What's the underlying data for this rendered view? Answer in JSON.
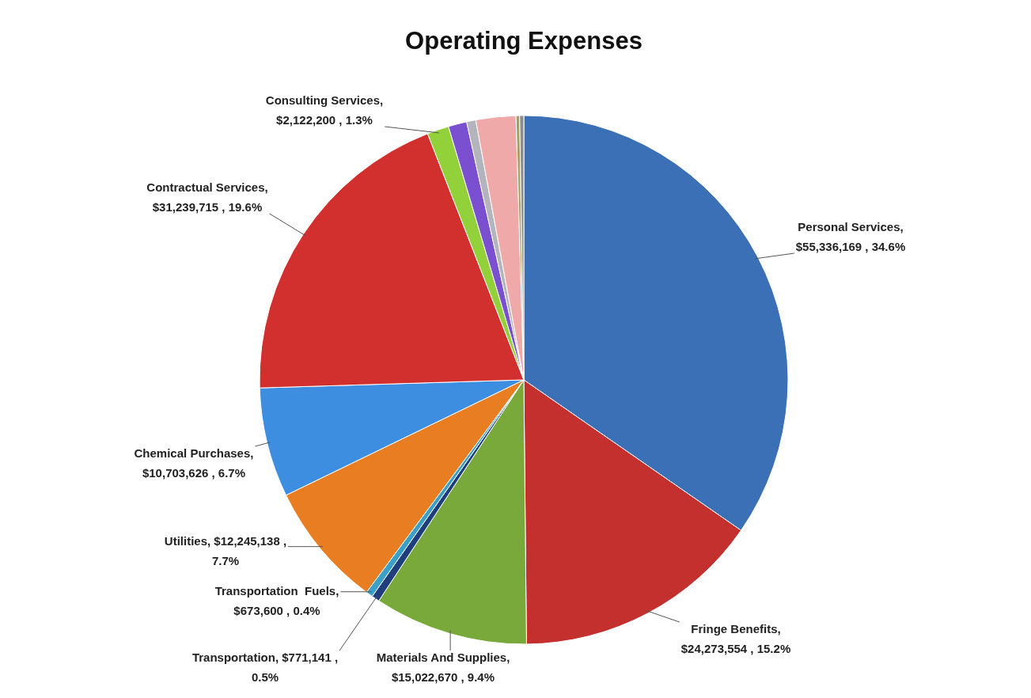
{
  "chart_data": {
    "type": "pie",
    "title": "Operating Expenses",
    "categories": [
      "Personal Services",
      "Fringe Benefits",
      "Materials And Supplies",
      "Transportation",
      "Transportation  Fuels",
      "Utilities",
      "Chemical Purchases",
      "Contractual Services",
      "Consulting Services",
      null,
      null,
      null,
      null,
      null
    ],
    "values": [
      55336169,
      24273554,
      15022670,
      771141,
      673600,
      12245138,
      10703626,
      31239715,
      2122200,
      1800000,
      900000,
      3900000,
      350000,
      400000
    ],
    "colors": [
      "#3b6fb6",
      "#c3302d",
      "#79a83b",
      "#1e3f7c",
      "#3aa0c8",
      "#e97d21",
      "#3d8ee0",
      "#d2302e",
      "#93d13a",
      "#7a4fd0",
      "#b4b4bc",
      "#f0a9a9",
      "#a3a062",
      "#8c8c8c"
    ],
    "value_labels": [
      ", $55,336,169 , 34.6%",
      ", $24,273,554 , 15.2%",
      ", $15,022,670 , 9.4%",
      ", $771,141 , 0.5%",
      ", $673,600 , 0.4%",
      ", $12,245,138 , 7.7%",
      ", $10,703,626 , 6.7%",
      ", $31,239,715 , 19.6%",
      ", $2,122,200 , 1.3%",
      null,
      null,
      null,
      null,
      null
    ]
  }
}
